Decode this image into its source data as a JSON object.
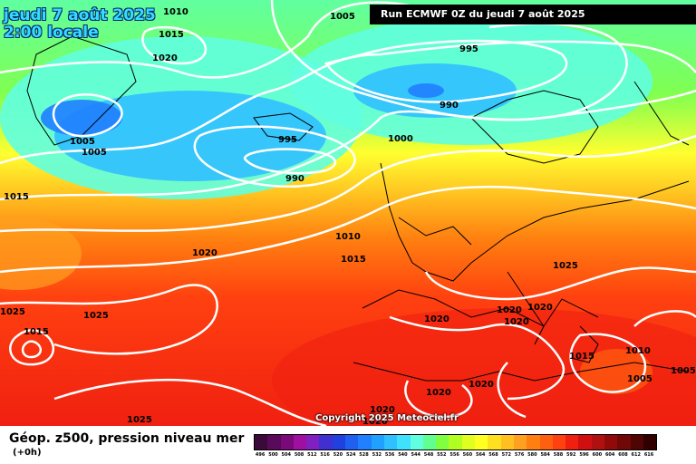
{
  "header": {
    "date_line": "jeudi 7 août 2025",
    "time_line": "2:00 locale",
    "run_info": "Run ECMWF 0Z du jeudi 7 août 2025"
  },
  "map": {
    "isobar_labels": [
      "1010",
      "1015",
      "1020",
      "1005",
      "995",
      "990",
      "1000",
      "1005",
      "1005",
      "995",
      "990",
      "1015",
      "1010",
      "1015",
      "1020",
      "1025",
      "1025",
      "1015",
      "1025",
      "1020",
      "1020",
      "1020",
      "1020",
      "1010",
      "1015",
      "1005",
      "1005",
      "1020",
      "1020",
      "1025",
      "1020",
      "1020"
    ],
    "copyright": "Copyright 2025 Meteociel.fr"
  },
  "legend": {
    "title": "Géop. z500, pression niveau mer",
    "subtitle": "(+0h)",
    "scale_values": [
      "496",
      "500",
      "504",
      "508",
      "512",
      "516",
      "520",
      "524",
      "528",
      "532",
      "536",
      "540",
      "544",
      "548",
      "552",
      "556",
      "560",
      "564",
      "568",
      "572",
      "576",
      "580",
      "584",
      "588",
      "592",
      "596",
      "600",
      "604",
      "608",
      "612",
      "616"
    ],
    "scale_colors": [
      "#3a0a3a",
      "#5a0a5a",
      "#7a0a7a",
      "#a010a0",
      "#8020c0",
      "#4030d0",
      "#2040e0",
      "#2060f0",
      "#2080ff",
      "#20a0ff",
      "#30c0ff",
      "#40e0ff",
      "#60ffe0",
      "#60ff90",
      "#80ff40",
      "#b0ff20",
      "#e0ff20",
      "#ffff20",
      "#ffe020",
      "#ffc020",
      "#ffa020",
      "#ff8010",
      "#ff6010",
      "#ff4010",
      "#f02010",
      "#d01010",
      "#b01010",
      "#900a0a",
      "#700808",
      "#500505",
      "#300000"
    ]
  }
}
